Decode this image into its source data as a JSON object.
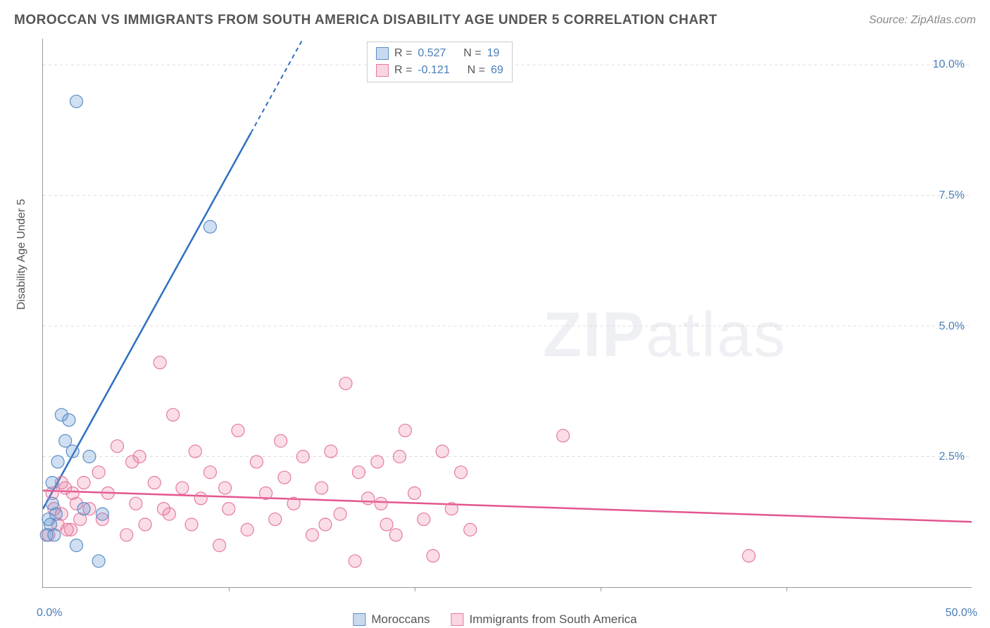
{
  "header": {
    "title": "MOROCCAN VS IMMIGRANTS FROM SOUTH AMERICA DISABILITY AGE UNDER 5 CORRELATION CHART",
    "source": "Source: ZipAtlas.com"
  },
  "ylabel": "Disability Age Under 5",
  "watermark_a": "ZIP",
  "watermark_b": "atlas",
  "chart": {
    "type": "scatter",
    "xlim": [
      0,
      50
    ],
    "ylim": [
      0,
      10.5
    ],
    "xtick_step": 10,
    "ytick_positions": [
      2.5,
      5.0,
      7.5,
      10.0
    ],
    "ytick_labels": [
      "2.5%",
      "5.0%",
      "7.5%",
      "10.0%"
    ],
    "xtick_left_label": "0.0%",
    "xtick_right_label": "50.0%",
    "grid_color": "#dddddd",
    "axis_color": "#999999",
    "background_color": "#ffffff",
    "series": [
      {
        "name": "Moroccans",
        "color_fill": "rgba(100,150,210,0.30)",
        "color_stroke": "#5b8fc7",
        "line_color": "#2e6fc0",
        "marker_r": 9,
        "R": "0.527",
        "N": "19",
        "trend": {
          "x1": 0,
          "y1": 1.5,
          "x2": 14,
          "y2": 10.5,
          "dashed_from_x": 11.2
        },
        "points": [
          [
            0.2,
            1.0
          ],
          [
            0.3,
            1.3
          ],
          [
            0.4,
            1.2
          ],
          [
            0.5,
            1.6
          ],
          [
            0.5,
            2.0
          ],
          [
            0.6,
            1.0
          ],
          [
            0.7,
            1.4
          ],
          [
            0.8,
            2.4
          ],
          [
            1.0,
            3.3
          ],
          [
            1.2,
            2.8
          ],
          [
            1.4,
            3.2
          ],
          [
            1.6,
            2.6
          ],
          [
            1.8,
            0.8
          ],
          [
            2.2,
            1.5
          ],
          [
            2.5,
            2.5
          ],
          [
            3.2,
            1.4
          ],
          [
            1.8,
            9.3
          ],
          [
            3.0,
            0.5
          ],
          [
            9.0,
            6.9
          ]
        ]
      },
      {
        "name": "Immigrants from South America",
        "color_fill": "rgba(235,120,160,0.25)",
        "color_stroke": "#e67aa2",
        "line_color": "#e3568f",
        "marker_r": 9,
        "R": "-0.121",
        "N": "69",
        "trend": {
          "x1": 0,
          "y1": 1.85,
          "x2": 50,
          "y2": 1.25
        },
        "points": [
          [
            0.5,
            1.8
          ],
          [
            0.8,
            1.2
          ],
          [
            1.0,
            1.4
          ],
          [
            1.2,
            1.9
          ],
          [
            1.5,
            1.1
          ],
          [
            1.8,
            1.6
          ],
          [
            2.0,
            1.3
          ],
          [
            2.2,
            2.0
          ],
          [
            2.5,
            1.5
          ],
          [
            3.0,
            2.2
          ],
          [
            3.2,
            1.3
          ],
          [
            3.5,
            1.8
          ],
          [
            4.0,
            2.7
          ],
          [
            4.5,
            1.0
          ],
          [
            5.0,
            1.6
          ],
          [
            5.2,
            2.5
          ],
          [
            5.5,
            1.2
          ],
          [
            6.0,
            2.0
          ],
          [
            6.3,
            4.3
          ],
          [
            6.8,
            1.4
          ],
          [
            7.0,
            3.3
          ],
          [
            7.5,
            1.9
          ],
          [
            8.0,
            1.2
          ],
          [
            8.2,
            2.6
          ],
          [
            8.5,
            1.7
          ],
          [
            9.0,
            2.2
          ],
          [
            9.5,
            0.8
          ],
          [
            10.0,
            1.5
          ],
          [
            10.5,
            3.0
          ],
          [
            11.0,
            1.1
          ],
          [
            11.5,
            2.4
          ],
          [
            12.0,
            1.8
          ],
          [
            12.5,
            1.3
          ],
          [
            13.0,
            2.1
          ],
          [
            13.5,
            1.6
          ],
          [
            14.0,
            2.5
          ],
          [
            14.5,
            1.0
          ],
          [
            15.0,
            1.9
          ],
          [
            15.5,
            2.6
          ],
          [
            16.0,
            1.4
          ],
          [
            16.3,
            3.9
          ],
          [
            16.8,
            0.5
          ],
          [
            17.0,
            2.2
          ],
          [
            17.5,
            1.7
          ],
          [
            18.0,
            2.4
          ],
          [
            18.5,
            1.2
          ],
          [
            19.0,
            1.0
          ],
          [
            19.2,
            2.5
          ],
          [
            19.5,
            3.0
          ],
          [
            20.0,
            1.8
          ],
          [
            20.5,
            1.3
          ],
          [
            21.0,
            0.6
          ],
          [
            21.5,
            2.6
          ],
          [
            22.0,
            1.5
          ],
          [
            22.5,
            2.2
          ],
          [
            23.0,
            1.1
          ],
          [
            28.0,
            2.9
          ],
          [
            38.0,
            0.6
          ],
          [
            0.3,
            1.0
          ],
          [
            0.6,
            1.5
          ],
          [
            1.0,
            2.0
          ],
          [
            1.3,
            1.1
          ],
          [
            1.6,
            1.8
          ],
          [
            4.8,
            2.4
          ],
          [
            6.5,
            1.5
          ],
          [
            9.8,
            1.9
          ],
          [
            12.8,
            2.8
          ],
          [
            15.2,
            1.2
          ],
          [
            18.2,
            1.6
          ]
        ]
      }
    ]
  },
  "stats_legend": {
    "label_r": "R =",
    "label_n": "N ="
  },
  "bottom_legend": {
    "a": "Moroccans",
    "b": "Immigrants from South America"
  }
}
